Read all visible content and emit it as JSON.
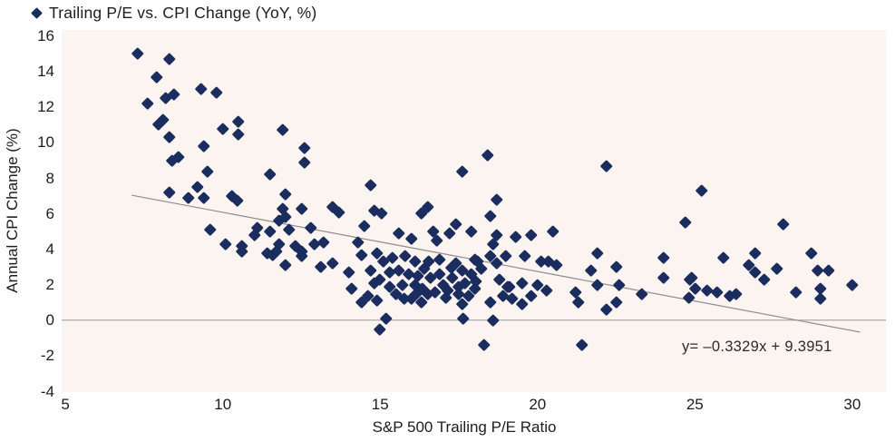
{
  "legend": {
    "label": "Trailing P/E vs. CPI Change (YoY, %)"
  },
  "colors": {
    "marker": "#1b2d5e",
    "plot_background": "#fcf4f0",
    "trend_line": "#8c8c8c",
    "zero_line": "#9a9a9a",
    "text": "#1d1d1b"
  },
  "chart_data": {
    "type": "scatter",
    "title": "Trailing P/E vs. CPI Change (YoY, %)",
    "xlabel": "S&P 500 Trailing P/E Ratio",
    "ylabel": "Annual CPI Change (%)",
    "xlim": [
      4.88,
      31.07
    ],
    "ylim": [
      -4.05,
      16.33
    ],
    "x_ticks": [
      5,
      10,
      15,
      20,
      25,
      30
    ],
    "y_ticks": [
      16,
      14,
      12,
      10,
      8,
      6,
      4,
      2,
      0,
      -2,
      -4
    ],
    "grid": false,
    "legend_position": "top-left",
    "zero_line_y": 0,
    "trendline": {
      "equation_label": "y= –0.3329x + 9.3951",
      "slope": -0.3329,
      "intercept": 9.3951,
      "x_start": 7.1,
      "x_end": 30.25
    },
    "points": [
      [
        7.3,
        15.0
      ],
      [
        8.3,
        14.7
      ],
      [
        7.9,
        13.7
      ],
      [
        9.3,
        13.0
      ],
      [
        9.8,
        12.8
      ],
      [
        8.45,
        12.7
      ],
      [
        8.2,
        12.5
      ],
      [
        7.6,
        12.2
      ],
      [
        8.1,
        11.3
      ],
      [
        7.95,
        11.05
      ],
      [
        10.5,
        11.2
      ],
      [
        10.0,
        10.8
      ],
      [
        10.5,
        10.45
      ],
      [
        8.3,
        10.3
      ],
      [
        9.4,
        9.8
      ],
      [
        11.9,
        10.7
      ],
      [
        12.6,
        9.7
      ],
      [
        8.6,
        9.2
      ],
      [
        8.4,
        9.0
      ],
      [
        12.6,
        8.9
      ],
      [
        9.5,
        8.4
      ],
      [
        11.5,
        8.2
      ],
      [
        9.2,
        7.5
      ],
      [
        8.3,
        7.2
      ],
      [
        10.3,
        7.0
      ],
      [
        8.9,
        6.9
      ],
      [
        9.4,
        6.9
      ],
      [
        10.45,
        6.75
      ],
      [
        12.0,
        7.1
      ],
      [
        11.9,
        6.3
      ],
      [
        12.5,
        6.3
      ],
      [
        13.5,
        6.4
      ],
      [
        13.7,
        6.1
      ],
      [
        14.7,
        7.6
      ],
      [
        14.8,
        6.2
      ],
      [
        15.05,
        6.05
      ],
      [
        16.5,
        6.4
      ],
      [
        16.3,
        6.05
      ],
      [
        17.6,
        8.4
      ],
      [
        18.4,
        9.3
      ],
      [
        22.2,
        8.7
      ],
      [
        18.7,
        6.8
      ],
      [
        25.2,
        7.3
      ],
      [
        18.5,
        5.85
      ],
      [
        24.7,
        5.5
      ],
      [
        27.8,
        5.4
      ],
      [
        9.6,
        5.1
      ],
      [
        11.8,
        5.6
      ],
      [
        11.1,
        5.2
      ],
      [
        11.5,
        5.0
      ],
      [
        11.0,
        4.8
      ],
      [
        10.1,
        4.3
      ],
      [
        10.6,
        4.2
      ],
      [
        10.6,
        3.9
      ],
      [
        11.4,
        3.8
      ],
      [
        11.7,
        3.9
      ],
      [
        12.0,
        5.8
      ],
      [
        12.8,
        5.2
      ],
      [
        12.1,
        5.1
      ],
      [
        11.8,
        4.3
      ],
      [
        12.3,
        4.2
      ],
      [
        12.5,
        3.9
      ],
      [
        12.9,
        4.3
      ],
      [
        13.2,
        4.4
      ],
      [
        11.6,
        3.7
      ],
      [
        12.0,
        3.1
      ],
      [
        12.5,
        3.6
      ],
      [
        13.1,
        3.0
      ],
      [
        13.5,
        3.2
      ],
      [
        14.0,
        2.7
      ],
      [
        14.1,
        1.8
      ],
      [
        14.3,
        4.4
      ],
      [
        14.5,
        5.3
      ],
      [
        14.4,
        3.7
      ],
      [
        14.9,
        3.8
      ],
      [
        14.7,
        2.8
      ],
      [
        15.1,
        3.3
      ],
      [
        15.3,
        2.7
      ],
      [
        15.6,
        4.9
      ],
      [
        15.6,
        2.8
      ],
      [
        16.0,
        4.6
      ],
      [
        16.1,
        3.3
      ],
      [
        16.2,
        2.5
      ],
      [
        15.7,
        2.0
      ],
      [
        15.5,
        1.5
      ],
      [
        14.6,
        1.4
      ],
      [
        14.4,
        1.0
      ],
      [
        14.9,
        1.1
      ],
      [
        15.2,
        0.1
      ],
      [
        15.0,
        -0.5
      ],
      [
        16.0,
        1.2
      ],
      [
        16.4,
        2.9
      ],
      [
        16.5,
        1.5
      ],
      [
        16.3,
        1.0
      ],
      [
        16.7,
        5.0
      ],
      [
        16.8,
        4.5
      ],
      [
        16.9,
        3.4
      ],
      [
        16.75,
        1.6
      ],
      [
        17.0,
        2.0
      ],
      [
        17.1,
        1.3
      ],
      [
        17.2,
        4.9
      ],
      [
        17.4,
        5.4
      ],
      [
        17.6,
        2.8
      ],
      [
        17.3,
        2.4
      ],
      [
        17.7,
        2.1
      ],
      [
        17.9,
        2.6
      ],
      [
        18.0,
        1.8
      ],
      [
        17.6,
        0.9
      ],
      [
        17.9,
        5.0
      ],
      [
        18.1,
        3.3
      ],
      [
        17.65,
        0.1
      ],
      [
        15.4,
        3.5
      ],
      [
        15.8,
        3.6
      ],
      [
        16.1,
        2.0
      ],
      [
        16.6,
        2.4
      ],
      [
        16.9,
        2.6
      ],
      [
        17.15,
        1.7
      ],
      [
        17.5,
        1.5
      ],
      [
        17.8,
        1.4
      ],
      [
        18.2,
        2.9
      ],
      [
        18.0,
        3.4
      ],
      [
        17.4,
        3.2
      ],
      [
        16.55,
        3.3
      ],
      [
        15.9,
        2.6
      ],
      [
        15.3,
        1.9
      ],
      [
        15.0,
        2.3
      ],
      [
        14.8,
        2.1
      ],
      [
        17.5,
        1.9
      ],
      [
        18.05,
        2.2
      ],
      [
        16.35,
        1.8
      ],
      [
        15.75,
        1.2
      ],
      [
        16.15,
        1.5
      ],
      [
        17.25,
        2.95
      ],
      [
        20.5,
        5.0
      ],
      [
        18.7,
        4.8
      ],
      [
        19.3,
        4.7
      ],
      [
        19.8,
        4.8
      ],
      [
        18.6,
        4.3
      ],
      [
        18.5,
        3.6
      ],
      [
        18.7,
        3.2
      ],
      [
        19.0,
        3.6
      ],
      [
        19.6,
        3.6
      ],
      [
        20.1,
        3.3
      ],
      [
        20.35,
        3.3
      ],
      [
        20.6,
        3.1
      ],
      [
        21.9,
        3.8
      ],
      [
        21.7,
        2.8
      ],
      [
        21.9,
        2.0
      ],
      [
        22.5,
        3.0
      ],
      [
        22.6,
        2.0
      ],
      [
        24.0,
        3.5
      ],
      [
        24.0,
        2.4
      ],
      [
        24.85,
        2.3
      ],
      [
        23.3,
        1.5
      ],
      [
        22.5,
        1.0
      ],
      [
        22.2,
        0.6
      ],
      [
        21.2,
        1.6
      ],
      [
        21.3,
        1.0
      ],
      [
        18.8,
        2.3
      ],
      [
        19.1,
        1.9
      ],
      [
        19.5,
        2.1
      ],
      [
        20.0,
        2.0
      ],
      [
        20.3,
        1.7
      ],
      [
        18.5,
        1.0
      ],
      [
        18.6,
        0.0
      ],
      [
        18.3,
        -1.4
      ],
      [
        21.4,
        -1.4
      ],
      [
        18.9,
        1.4
      ],
      [
        19.2,
        1.2
      ],
      [
        19.5,
        0.9
      ],
      [
        19.8,
        1.4
      ],
      [
        19.05,
        1.9
      ],
      [
        25.9,
        3.5
      ],
      [
        26.9,
        3.8
      ],
      [
        26.7,
        3.1
      ],
      [
        26.9,
        2.7
      ],
      [
        27.2,
        2.3
      ],
      [
        27.6,
        2.9
      ],
      [
        28.7,
        3.8
      ],
      [
        28.9,
        2.8
      ],
      [
        29.25,
        2.8
      ],
      [
        29.0,
        1.8
      ],
      [
        29.0,
        1.2
      ],
      [
        30.0,
        2.0
      ],
      [
        24.9,
        2.4
      ],
      [
        25.0,
        1.8
      ],
      [
        24.8,
        1.3
      ],
      [
        25.4,
        1.7
      ],
      [
        25.7,
        1.6
      ],
      [
        26.1,
        1.4
      ],
      [
        26.3,
        1.5
      ],
      [
        28.2,
        1.6
      ]
    ]
  }
}
